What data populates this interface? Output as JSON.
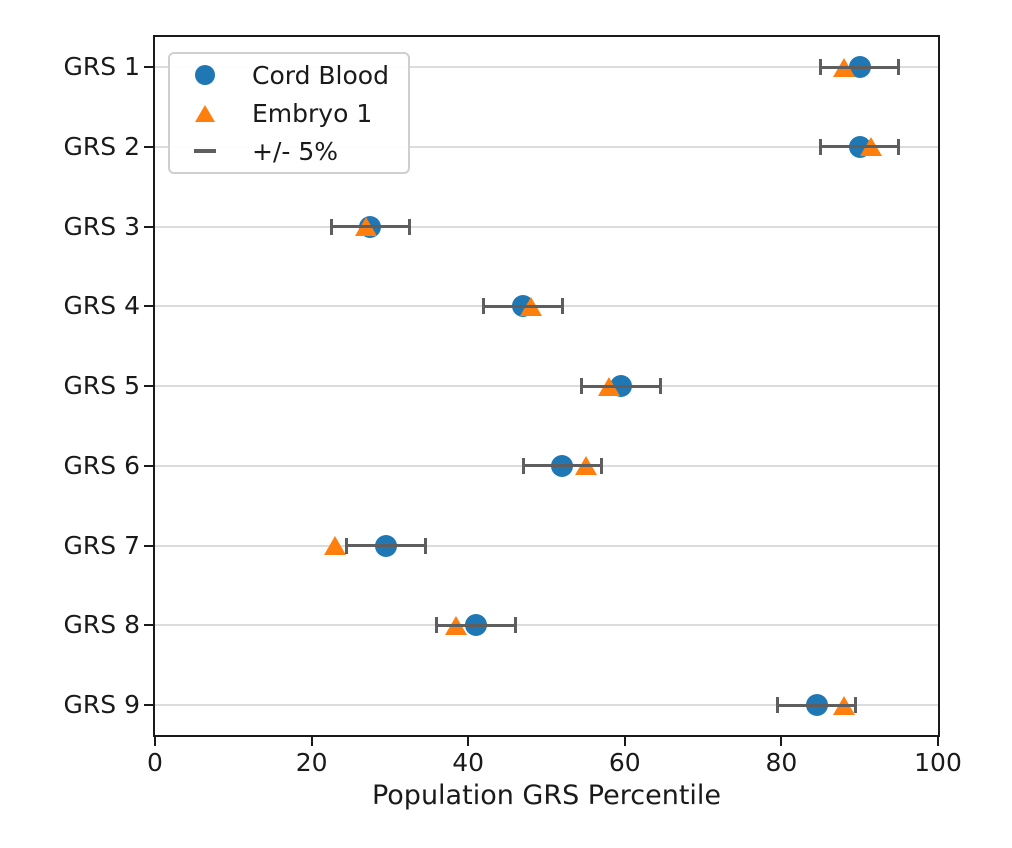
{
  "figure": {
    "background": "#ffffff",
    "text_color": "#1a1a1a",
    "grid_color": "#dcdcdc"
  },
  "chart_data": {
    "type": "scatter",
    "orientation": "horizontal",
    "title": "",
    "xlabel": "Population GRS Percentile",
    "ylabel": "",
    "xlim": [
      0,
      100
    ],
    "x_ticks": [
      0,
      20,
      40,
      60,
      80,
      100
    ],
    "categories": [
      "GRS 1",
      "GRS 2",
      "GRS 3",
      "GRS 4",
      "GRS 5",
      "GRS 6",
      "GRS 7",
      "GRS 8",
      "GRS 9"
    ],
    "grid": "horizontal-only",
    "legend_position": "upper-left",
    "series": [
      {
        "name": "Cord Blood",
        "marker": "circle",
        "color": "#1f77b4",
        "values": [
          90,
          90,
          27.5,
          47,
          59.5,
          52,
          29.5,
          41,
          84.5
        ]
      },
      {
        "name": "Embryo 1",
        "marker": "triangle-up",
        "color": "#ff7f0e",
        "values": [
          88,
          91.5,
          27,
          48,
          58,
          55,
          23,
          38.5,
          88
        ]
      }
    ],
    "error_bars": {
      "label": "+/- 5%",
      "applies_to": "Cord Blood",
      "plus_minus": 5,
      "color": "#5e5e5e"
    }
  }
}
